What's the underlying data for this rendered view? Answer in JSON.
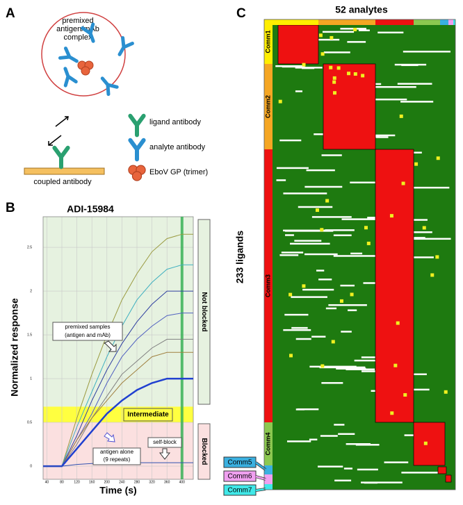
{
  "panels": {
    "a": "A",
    "b": "B",
    "c": "C"
  },
  "panel_a": {
    "circle_label": [
      "premixed",
      "antigen/mAb",
      "complex"
    ],
    "legend": [
      "ligand antibody",
      "analyte antibody",
      "EboV GP (trimer)"
    ],
    "coupled_label": "coupled antibody"
  },
  "chart_data": {
    "type": "line",
    "title": "ADI-15984",
    "x_label": "Time (s)",
    "y_label": "Normalized response",
    "xlim": [
      30,
      430
    ],
    "ylim": [
      -0.15,
      2.85
    ],
    "xticks": [
      40,
      80,
      120,
      160,
      200,
      240,
      280,
      320,
      360,
      400
    ],
    "yticks": [
      0,
      0.5,
      1,
      1.5,
      2,
      2.5
    ],
    "x": [
      30,
      80,
      120,
      160,
      200,
      240,
      280,
      320,
      360,
      400,
      430
    ],
    "series": [
      {
        "color": "#9a9a40",
        "values": [
          0,
          0,
          0.55,
          1.05,
          1.5,
          1.9,
          2.2,
          2.45,
          2.6,
          2.65,
          2.65
        ]
      },
      {
        "color": "#40b0c0",
        "values": [
          0,
          0,
          0.45,
          0.85,
          1.25,
          1.6,
          1.9,
          2.1,
          2.25,
          2.3,
          2.3
        ]
      },
      {
        "color": "#3040a0",
        "values": [
          0,
          0,
          0.35,
          0.75,
          1.1,
          1.4,
          1.65,
          1.85,
          2.0,
          2.0,
          2.0
        ]
      },
      {
        "color": "#5060c0",
        "values": [
          0,
          0,
          0.3,
          0.6,
          0.95,
          1.25,
          1.45,
          1.6,
          1.72,
          1.75,
          1.75
        ]
      },
      {
        "color": "#808080",
        "values": [
          0,
          0,
          0.25,
          0.55,
          0.8,
          1.05,
          1.2,
          1.35,
          1.45,
          1.45,
          1.45
        ]
      },
      {
        "color": "#a08040",
        "values": [
          0,
          0,
          0.3,
          0.55,
          0.75,
          0.95,
          1.1,
          1.25,
          1.3,
          1.3,
          1.3
        ]
      },
      {
        "color": "#2040d0",
        "values": [
          0,
          0,
          0.2,
          0.4,
          0.6,
          0.75,
          0.87,
          0.95,
          1.0,
          1.0,
          1.0
        ]
      },
      {
        "color": "#3050b0",
        "values": [
          0,
          0,
          0.02,
          0.03,
          0.03,
          0.04,
          0.04,
          0.04,
          0.04,
          0.04,
          0.04
        ]
      }
    ],
    "vline": 400,
    "zones": [
      {
        "label": "Not blocked",
        "from": 0.68,
        "to": 2.85,
        "color": "#e6f2e0"
      },
      {
        "label": "Intermediate",
        "from": 0.5,
        "to": 0.68,
        "color": "#ffff40"
      },
      {
        "label": "Blocked",
        "from": -0.15,
        "to": 0.5,
        "color": "#fbe0e0"
      }
    ],
    "annotations": {
      "premixed": [
        "premixed samples",
        "(antigen and mAb)"
      ],
      "alone": [
        "antigen alone",
        "(9 repeats)"
      ],
      "self": "self-block"
    }
  },
  "panel_c": {
    "title": "52 analytes",
    "y_label": "233 ligands",
    "communities": [
      {
        "name": "Comm1",
        "color": "#ffee00"
      },
      {
        "name": "Comm2",
        "color": "#f5a623"
      },
      {
        "name": "Comm3",
        "color": "#ee1111"
      },
      {
        "name": "Comm4",
        "color": "#8cc850"
      },
      {
        "name": "Comm5",
        "color": "#3ab0e0"
      },
      {
        "name": "Comm6",
        "color": "#f0a0f0"
      },
      {
        "name": "Comm7",
        "color": "#40e8e8"
      }
    ]
  }
}
